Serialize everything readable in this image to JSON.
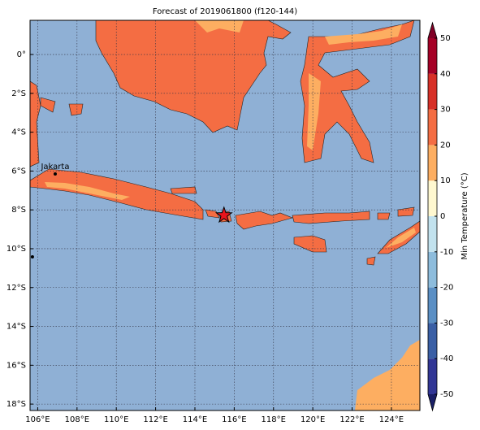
{
  "map": {
    "title": "Forecast of 2019061800 (f120-144)",
    "xlim": [
      105.61,
      125.45
    ],
    "ylim": [
      -18.33,
      1.76
    ],
    "xticks": [
      {
        "value": 106,
        "label": "106°E"
      },
      {
        "value": 108,
        "label": "108°E"
      },
      {
        "value": 110,
        "label": "110°E"
      },
      {
        "value": 112,
        "label": "112°E"
      },
      {
        "value": 114,
        "label": "114°E"
      },
      {
        "value": 116,
        "label": "116°E"
      },
      {
        "value": 118,
        "label": "118°E"
      },
      {
        "value": 120,
        "label": "120°E"
      },
      {
        "value": 122,
        "label": "122°E"
      },
      {
        "value": 124,
        "label": "124°E"
      }
    ],
    "yticks": [
      {
        "value": 0,
        "label": "0°"
      },
      {
        "value": -2,
        "label": "2°S"
      },
      {
        "value": -4,
        "label": "4°S"
      },
      {
        "value": -6,
        "label": "6°S"
      },
      {
        "value": -8,
        "label": "8°S"
      },
      {
        "value": -10,
        "label": "10°S"
      },
      {
        "value": -12,
        "label": "12°S"
      },
      {
        "value": -14,
        "label": "14°S"
      },
      {
        "value": -16,
        "label": "16°S"
      },
      {
        "value": -18,
        "label": "18°S"
      }
    ],
    "grid": true,
    "places": [
      {
        "label": "Jakarta",
        "lon": 106.89,
        "lat": -6.15
      }
    ],
    "markers": [
      {
        "symbol": "dot",
        "lon": 105.73,
        "lat": -10.42
      },
      {
        "symbol": "star",
        "lon": 115.48,
        "lat": -8.28
      }
    ],
    "colorbar": {
      "label": "Min Temperature (°C)",
      "lim": [
        -50,
        50
      ],
      "ticks": [
        -50,
        -40,
        -30,
        -20,
        -10,
        0,
        10,
        20,
        30,
        40,
        50
      ],
      "colors": [
        "#313695",
        "#3a5fa5",
        "#5b8fc4",
        "#8dbcdc",
        "#c2e2ee",
        "#ffffff",
        "#fff8d0",
        "#fdae61",
        "#f46d43",
        "#d73027",
        "#a50026"
      ],
      "under_color": "#1a1f66",
      "over_color": "#800026"
    }
  }
}
